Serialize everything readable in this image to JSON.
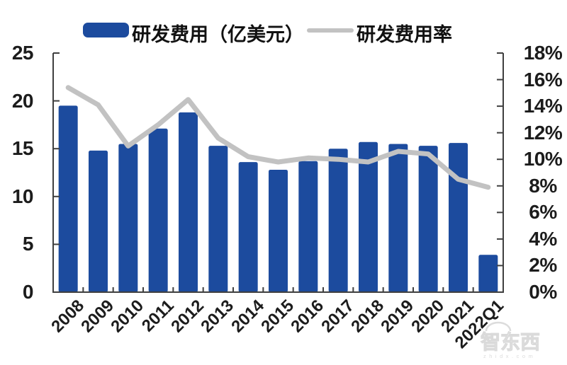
{
  "legend": {
    "bar_label": "研发费用（亿美元）",
    "line_label": "研发费用率"
  },
  "colors": {
    "bar": "#1C4B9E",
    "line": "#C2C2C2",
    "axis": "#3F3F3F",
    "tick_text": "#1C1C1C",
    "watermark": "#D6D6D6"
  },
  "watermark": {
    "logo": "智东西",
    "url": "zhidx.com"
  },
  "chart_data": {
    "type": "bar",
    "subtype": "bar+line combo, dual axis",
    "categories": [
      "2008",
      "2009",
      "2010",
      "2011",
      "2012",
      "2013",
      "2014",
      "2015",
      "2016",
      "2017",
      "2018",
      "2019",
      "2020",
      "2021",
      "2022Q1"
    ],
    "series": [
      {
        "name": "研发费用（亿美元）",
        "type": "bar",
        "axis": "left",
        "color": "#1C4B9E",
        "values": [
          19.5,
          14.8,
          15.5,
          17.1,
          18.8,
          15.3,
          13.6,
          12.8,
          13.7,
          15.0,
          15.7,
          15.5,
          15.3,
          15.6,
          3.9
        ]
      },
      {
        "name": "研发费用率",
        "type": "line",
        "axis": "right",
        "color": "#C2C2C2",
        "values": [
          15.4,
          14.1,
          11.0,
          12.6,
          14.5,
          11.6,
          10.2,
          9.8,
          10.1,
          10.0,
          9.8,
          10.6,
          10.4,
          8.5,
          7.9
        ]
      }
    ],
    "left_axis": {
      "min": 0,
      "max": 25,
      "step": 5,
      "tick_labels": [
        "0",
        "5",
        "10",
        "15",
        "20",
        "25"
      ]
    },
    "right_axis": {
      "min": 0,
      "max": 18,
      "step": 2,
      "tick_labels": [
        "0%",
        "2%",
        "4%",
        "6%",
        "8%",
        "10%",
        "12%",
        "14%",
        "16%",
        "18%"
      ]
    },
    "grid": false,
    "legend_position": "top",
    "title": "",
    "xlabel": "",
    "ylabel": ""
  }
}
